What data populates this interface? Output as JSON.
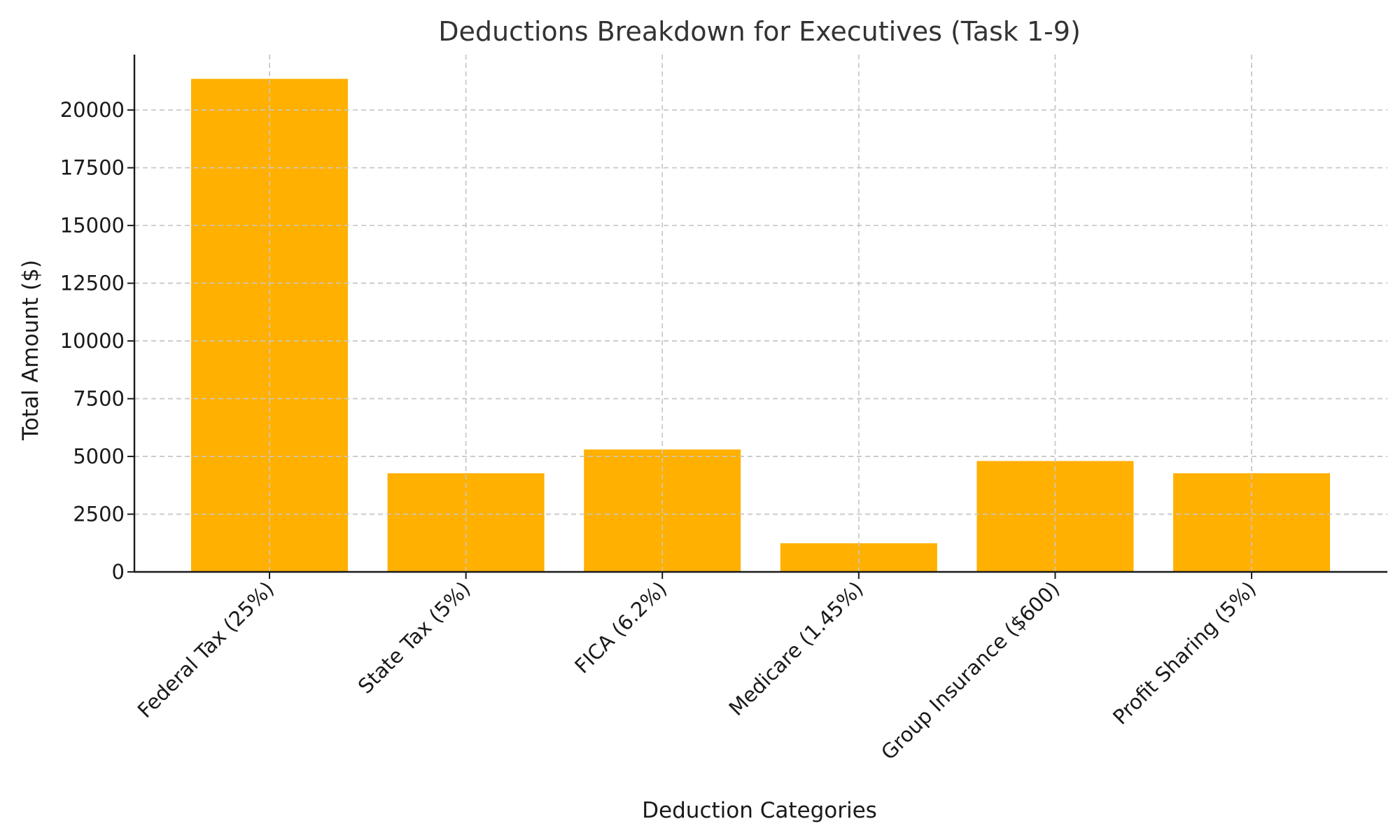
{
  "chart_data": {
    "type": "bar",
    "title": "Deductions Breakdown for Executives (Task 1-9)",
    "xlabel": "Deduction Categories",
    "ylabel": "Total Amount ($)",
    "categories": [
      "Federal Tax (25%)",
      "State Tax (5%)",
      "FICA (6.2%)",
      "Medicare (1.45%)",
      "Group Insurance ($600)",
      "Profit Sharing (5%)"
    ],
    "values": [
      21350,
      4270,
      5300,
      1240,
      4800,
      4270
    ],
    "ylim": [
      0,
      22400
    ],
    "yticks": [
      0,
      2500,
      5000,
      7500,
      10000,
      12500,
      15000,
      17500,
      20000
    ],
    "bar_color": "#FFB000",
    "grid": true,
    "legend": "none"
  }
}
